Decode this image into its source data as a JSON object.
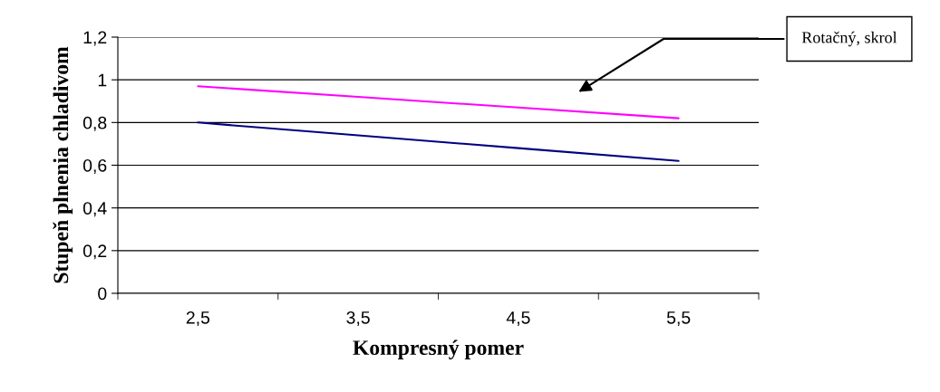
{
  "chart_data": {
    "type": "line",
    "xlabel": "Kompresný pomer",
    "ylabel": "Stupeň plnenia chladivom",
    "categories": [
      "2,5",
      "3,5",
      "4,5",
      "5,5"
    ],
    "series": [
      {
        "color": "#ff00ff",
        "values": [
          0.97,
          0.92,
          0.87,
          0.82
        ]
      },
      {
        "color": "#000080",
        "values": [
          0.8,
          0.74,
          0.68,
          0.62
        ]
      }
    ],
    "ylim": [
      0,
      1.2
    ],
    "yticks": [
      {
        "value": 0,
        "label": "0"
      },
      {
        "value": 0.2,
        "label": "0,2"
      },
      {
        "value": 0.4,
        "label": "0,4"
      },
      {
        "value": 0.6,
        "label": "0,6"
      },
      {
        "value": 0.8,
        "label": "0,8"
      },
      {
        "value": 1,
        "label": "1"
      },
      {
        "value": 1.2,
        "label": "1,2"
      }
    ],
    "grid": "y",
    "marker": "none",
    "line_style": "solid",
    "legend": false,
    "annotations": [
      "Rotačný, skrol"
    ]
  }
}
